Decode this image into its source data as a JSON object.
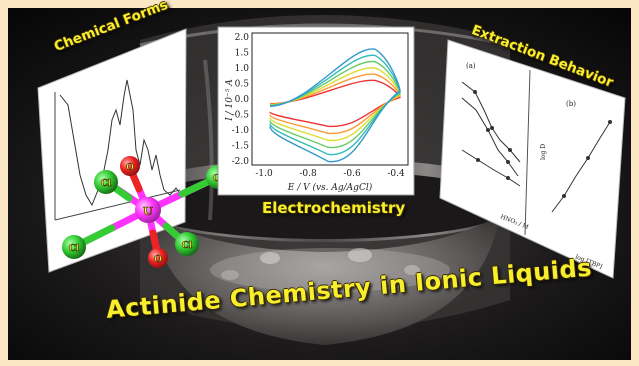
{
  "labels": {
    "chemical_forms": "Chemical Forms",
    "extraction_behavior": "Extraction Behavior",
    "electrochemistry": "Electrochemistry",
    "title": "Actinide Chemistry in Ionic Liquids"
  },
  "molecule": {
    "center_atom": "U",
    "oxo_atom": "O",
    "chloride_atom": "Cl"
  },
  "cv_plot": {
    "y_axis_label": "I / 10⁻⁵ A",
    "x_axis_label": "E / V (vs. Ag/AgCl)",
    "y_ticks": [
      "2.0",
      "1.5",
      "1.0",
      "0.5",
      "0.0",
      "-0.5",
      "-1.0",
      "-1.5",
      "-2.0"
    ],
    "x_ticks": [
      "-1.0",
      "-0.8",
      "-0.6",
      "-0.4"
    ]
  },
  "extraction_plots": {
    "left_panel_tag": "(a)",
    "right_panel_tag": "(b)",
    "left_x_label": "HNO₃ / M",
    "right_x_label": "log [TBP]",
    "right_y_label": "log D"
  },
  "colors": {
    "label_yellow": "#f7ee2e",
    "uranium": "#ff33ff",
    "chlorine": "#33cc33",
    "oxygen": "#ee2222",
    "cv_curves": [
      "#ee3333",
      "#ff9933",
      "#dddd33",
      "#66cc66",
      "#33bbbb",
      "#3399cc"
    ]
  }
}
